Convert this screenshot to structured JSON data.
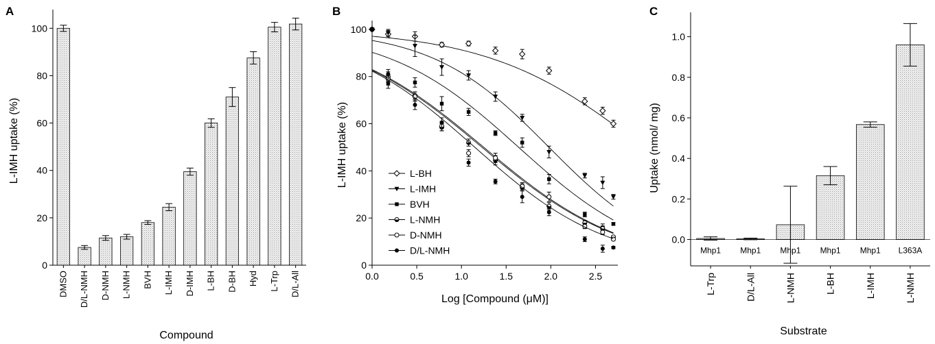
{
  "chart_data": [
    {
      "panel": "A",
      "type": "bar",
      "xlabel": "Compound",
      "ylabel": "L-IMH uptake (%)",
      "ylim": [
        0,
        105
      ],
      "yticks": [
        0,
        20,
        40,
        60,
        80,
        100
      ],
      "categories": [
        "DMSO",
        "D/L-NMH",
        "D-NMH",
        "L-NMH",
        "BVH",
        "L-IMH",
        "D-IMH",
        "L-BH",
        "D-BH",
        "Hyd",
        "L-Trp",
        "D/L-All"
      ],
      "values": [
        100,
        7.5,
        11.5,
        12,
        18,
        24.5,
        39.5,
        60,
        71,
        87.5,
        100.5,
        101.8
      ],
      "errors": [
        1.3,
        0.8,
        1,
        1,
        0.8,
        1.5,
        1.5,
        1.8,
        4,
        2.6,
        2,
        2.5
      ]
    },
    {
      "panel": "B",
      "type": "line",
      "xlabel": "Log [Compound (μM)]",
      "ylabel": "L-IMH uptake (%)",
      "xlim": [
        0,
        2.75
      ],
      "ylim": [
        0,
        102
      ],
      "xticks": [
        0.0,
        0.5,
        1.0,
        1.5,
        2.0,
        2.5
      ],
      "yticks": [
        0,
        20,
        40,
        60,
        80,
        100
      ],
      "x": [
        0,
        0.18,
        0.48,
        0.78,
        1.08,
        1.38,
        1.68,
        1.98,
        2.38,
        2.58,
        2.7
      ],
      "series": [
        {
          "name": "L-BH",
          "marker": "diamond-open",
          "values": [
            100,
            98,
            97,
            93.5,
            94,
            91,
            89.5,
            82.5,
            69.5,
            65.5,
            60
          ],
          "errors": [
            0,
            1.5,
            2,
            1,
            1,
            1.5,
            2,
            1.5,
            1.5,
            1.5,
            1.5
          ],
          "fit": {
            "bottom": 0,
            "top": 100,
            "logIC50": 3.04,
            "hill": 0.5
          }
        },
        {
          "name": "L-IMH",
          "marker": "triangle-down-filled",
          "values": [
            100,
            98.5,
            93,
            84,
            80.5,
            71.5,
            62.5,
            48,
            38,
            35,
            29
          ],
          "errors": [
            0,
            1.5,
            4.5,
            3.5,
            2,
            2,
            1.5,
            2.5,
            1,
            2.5,
            1
          ],
          "fit": {
            "bottom": 0,
            "top": 100,
            "logIC50": 1.98,
            "hill": 0.66
          }
        },
        {
          "name": "BVH",
          "marker": "square-filled",
          "values": [
            100,
            77,
            77.5,
            68.5,
            65,
            56,
            52,
            36.5,
            21.5,
            16,
            17.5
          ],
          "errors": [
            0,
            2,
            2,
            3,
            1.5,
            1,
            2,
            2,
            1,
            1.5,
            0.5
          ],
          "fit": {
            "bottom": 0,
            "top": 100,
            "logIC50": 1.64,
            "hill": 0.59
          }
        },
        {
          "name": "L-NMH",
          "marker": "circle-half",
          "values": [
            100,
            80,
            72,
            58.5,
            52,
            44.5,
            33,
            25,
            18,
            15.5,
            12
          ],
          "errors": [
            0,
            2,
            1.5,
            1.5,
            1.5,
            2,
            1.5,
            1.5,
            1,
            1,
            0.5
          ],
          "fit": {
            "bottom": 0,
            "top": 100,
            "logIC50": 1.25,
            "hill": 0.55
          }
        },
        {
          "name": "D-NMH",
          "marker": "circle-open",
          "values": [
            100,
            79,
            71.5,
            59,
            47.5,
            45.5,
            33.5,
            29,
            16.5,
            14,
            11
          ],
          "errors": [
            0,
            1.5,
            2,
            2,
            1.5,
            2,
            1.5,
            2,
            1,
            1,
            0.5
          ],
          "fit": {
            "bottom": 0,
            "top": 100,
            "logIC50": 1.23,
            "hill": 0.55
          }
        },
        {
          "name": "D/L-NMH",
          "marker": "circle-filled",
          "values": [
            100,
            81,
            68,
            60.5,
            43.5,
            35.5,
            29,
            22.5,
            11,
            7,
            7.5
          ],
          "errors": [
            0,
            2,
            2,
            2,
            1.5,
            1,
            2.5,
            1.5,
            1,
            1.5,
            0.5
          ],
          "fit": {
            "bottom": 0,
            "top": 100,
            "logIC50": 1.15,
            "hill": 0.58
          }
        }
      ],
      "legend_position": "center-left"
    },
    {
      "panel": "C",
      "type": "bar",
      "xlabel": "Substrate",
      "ylabel": "Uptake (nmol/ mg)",
      "ylim": [
        -0.13,
        1.1
      ],
      "yticks": [
        0.0,
        0.2,
        0.4,
        0.6,
        0.8,
        1.0
      ],
      "yticklabels": [
        "0.0",
        "0.2",
        "0.4",
        "0.6",
        "0.8",
        "1.0"
      ],
      "categories": [
        "L-Trp",
        "D/L-All",
        "L-NMH",
        "L-BH",
        "L-IMH",
        "L-NMH"
      ],
      "bar_labels": [
        "Mhp1",
        "Mhp1",
        "Mhp1",
        "Mhp1",
        "Mhp1",
        "L363A"
      ],
      "values": [
        0.005,
        0.003,
        0.073,
        0.315,
        0.567,
        0.96
      ],
      "errors": [
        0.008,
        0.004,
        0.19,
        0.045,
        0.013,
        0.105
      ]
    }
  ],
  "panel_labels": [
    "A",
    "B",
    "C"
  ]
}
